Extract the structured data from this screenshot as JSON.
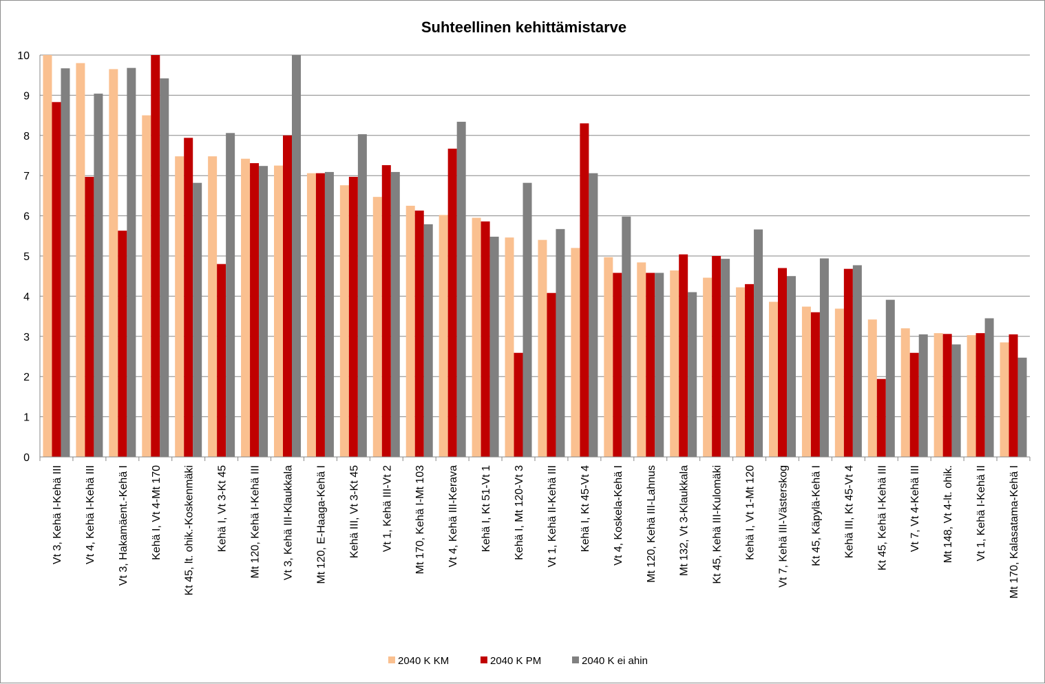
{
  "chart_data": {
    "type": "bar",
    "title": "Suhteellinen kehittämistarve",
    "xlabel": "",
    "ylabel": "",
    "ylim": [
      0,
      10
    ],
    "yticks": [
      "0",
      "1",
      "2",
      "3",
      "4",
      "5",
      "6",
      "7",
      "8",
      "9",
      "10"
    ],
    "grid": true,
    "legend_position": "bottom",
    "categories": [
      "Vt 3, Kehä I-Kehä III",
      "Vt 4, Kehä I-Kehä III",
      "Vt 3, Hakamäent.-Kehä I",
      "Kehä I, Vt 4-Mt 170",
      "Kt 45, lt. ohik.-Koskenmäki",
      "Kehä I, Vt 3-Kt 45",
      "Mt 120, Kehä I-Kehä III",
      "Vt 3, Kehä III-Klaukkala",
      "Mt 120, E-Haaga-Kehä I",
      "Kehä III, Vt 3-Kt 45",
      "Vt 1, Kehä III-Vt 2",
      "Mt 170, Kehä I-Mt 103",
      "Vt 4, Kehä III-Kerava",
      "Kehä I, Kt 51-Vt 1",
      "Kehä I, Mt 120-Vt 3",
      "Vt 1, Kehä II-Kehä III",
      "Kehä I, Kt 45-Vt 4",
      "Vt 4, Koskela-Kehä I",
      "Mt 120, Kehä III-Lahnus",
      "Mt 132, Vt 3-Klaukkala",
      "Kt 45, Kehä III-Kulomäki",
      "Kehä I, Vt 1-Mt 120",
      "Vt 7, Kehä III-Västerskog",
      "Kt 45, Käpylä-Kehä I",
      "Kehä III, Kt 45-Vt 4",
      "Kt 45, Kehä I-Kehä III",
      "Vt 7, Vt 4-Kehä III",
      "Mt 148, Vt 4-lt. ohik.",
      "Vt 1, Kehä I-Kehä II",
      "Mt 170, Kalasatama-Kehä I"
    ],
    "series": [
      {
        "name": "2040 K KM",
        "color": "#FAC090",
        "values": [
          10.0,
          9.8,
          9.65,
          8.5,
          7.48,
          7.48,
          7.42,
          7.25,
          7.06,
          6.76,
          6.47,
          6.25,
          6.02,
          5.95,
          5.46,
          5.4,
          5.2,
          4.97,
          4.84,
          4.64,
          4.46,
          4.22,
          3.86,
          3.74,
          3.69,
          3.42,
          3.2,
          3.08,
          3.03,
          2.85
        ]
      },
      {
        "name": "2040 K PM",
        "color": "#C00000",
        "values": [
          8.83,
          6.97,
          5.63,
          10.0,
          7.94,
          4.8,
          7.31,
          8.0,
          7.06,
          6.97,
          7.26,
          6.13,
          7.67,
          5.86,
          2.59,
          4.08,
          8.3,
          4.58,
          4.58,
          5.04,
          5.0,
          4.3,
          4.7,
          3.6,
          4.68,
          1.94,
          2.59,
          3.06,
          3.08,
          3.05
        ]
      },
      {
        "name": "2040 K ei ahin",
        "color": "#808080",
        "values": [
          9.67,
          9.04,
          9.68,
          9.42,
          6.82,
          8.06,
          7.24,
          10.0,
          7.09,
          8.03,
          7.09,
          5.79,
          8.34,
          5.48,
          6.82,
          5.67,
          7.06,
          5.98,
          4.58,
          4.1,
          4.93,
          5.66,
          4.5,
          4.94,
          4.77,
          3.91,
          3.05,
          2.8,
          3.45,
          2.47
        ]
      }
    ]
  }
}
